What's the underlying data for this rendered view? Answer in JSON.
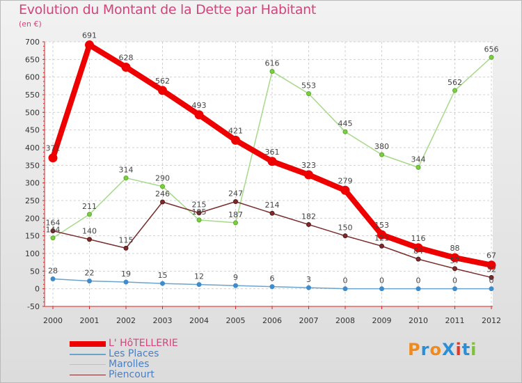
{
  "title": "Evolution du Montant de la Dette par Habitant",
  "subtitle": "(en €)",
  "logo": {
    "text": "ProXiti",
    "colors": [
      "#f08a1c",
      "#2a8fd6",
      "#f08a1c",
      "#2a8fd6",
      "#e2382a",
      "#2a8fd6",
      "#80c13b"
    ]
  },
  "chart_data": {
    "type": "line",
    "x": [
      "2000",
      "2001",
      "2002",
      "2003",
      "2004",
      "2005",
      "2006",
      "2007",
      "2008",
      "2009",
      "2010",
      "2011",
      "2012"
    ],
    "ylim": [
      -50,
      700
    ],
    "yticks": [
      -50,
      0,
      50,
      100,
      150,
      200,
      250,
      300,
      350,
      400,
      450,
      500,
      550,
      600,
      650,
      700
    ],
    "grid": true,
    "legend_position": "bottom-left",
    "series": [
      {
        "name": "L' HôTELLERIE",
        "color": "#ee0000",
        "values": [
          371,
          691,
          628,
          562,
          493,
          421,
          361,
          323,
          279,
          153,
          116,
          88,
          67
        ],
        "labels": [
          "371",
          "691",
          "628",
          "562",
          "493",
          "421",
          "361",
          "323",
          "279",
          "153",
          "116",
          "88",
          "67"
        ]
      },
      {
        "name": "Les Places",
        "color": "#6aa3cc",
        "values": [
          28,
          22,
          19,
          15,
          12,
          9,
          6,
          3,
          0,
          0,
          0,
          0,
          0
        ],
        "labels": [
          "28",
          "22",
          "19",
          "15",
          "12",
          "9",
          "6",
          "3",
          "0",
          "0",
          "0",
          "0",
          "0"
        ]
      },
      {
        "name": "Marolles",
        "color": "#a6d98a",
        "values": [
          144,
          211,
          314,
          290,
          195,
          187,
          616,
          553,
          445,
          380,
          344,
          562,
          656
        ],
        "labels": [
          "144",
          "211",
          "314",
          "290",
          "195",
          "187",
          "616",
          "553",
          "445",
          "380",
          "344",
          "562",
          "656"
        ]
      },
      {
        "name": "Piencourt",
        "color": "#7a2b2b",
        "values": [
          164,
          140,
          115,
          246,
          215,
          247,
          214,
          182,
          150,
          121,
          84,
          57,
          32
        ],
        "labels": [
          "164",
          "140",
          "115",
          "246",
          "215",
          "247",
          "214",
          "182",
          "150",
          "121",
          "84",
          "57",
          "32"
        ]
      }
    ]
  }
}
